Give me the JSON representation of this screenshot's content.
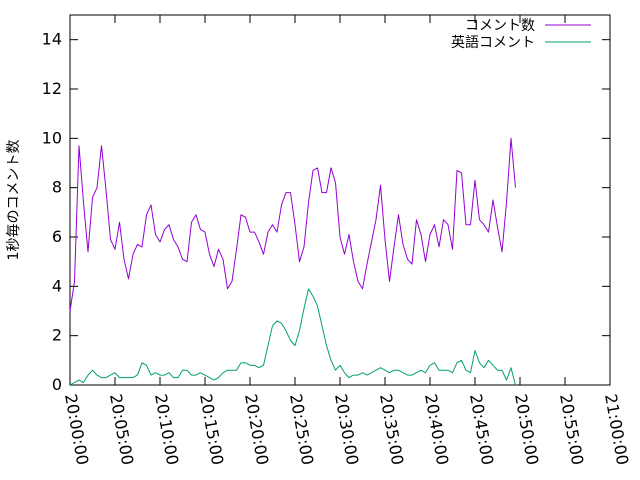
{
  "chart_data": {
    "type": "line",
    "ylabel": "1秒毎のコメント数",
    "xlabel": "",
    "ylim": [
      0,
      15
    ],
    "xlim": [
      "20:00:00",
      "21:00:00"
    ],
    "y_ticks": [
      "0",
      "2",
      "4",
      "6",
      "8",
      "10",
      "12",
      "14"
    ],
    "x_ticks": [
      "20:00:00",
      "20:05:00",
      "20:10:00",
      "20:15:00",
      "20:20:00",
      "20:25:00",
      "20:30:00",
      "20:35:00",
      "20:40:00",
      "20:45:00",
      "20:50:00",
      "20:55:00",
      "21:00:00"
    ],
    "legend_position": "top-right",
    "grid": false,
    "series": [
      {
        "name": "コメント数",
        "color": "#9400d3",
        "points": [
          [
            "20:00:00",
            3.0
          ],
          [
            "20:00:30",
            4.2
          ],
          [
            "20:01:00",
            9.7
          ],
          [
            "20:01:30",
            7.4
          ],
          [
            "20:02:00",
            5.4
          ],
          [
            "20:02:30",
            7.6
          ],
          [
            "20:03:00",
            8.0
          ],
          [
            "20:03:30",
            9.7
          ],
          [
            "20:04:00",
            7.9
          ],
          [
            "20:04:30",
            5.9
          ],
          [
            "20:05:00",
            5.5
          ],
          [
            "20:05:30",
            6.6
          ],
          [
            "20:06:00",
            5.1
          ],
          [
            "20:06:30",
            4.3
          ],
          [
            "20:07:00",
            5.3
          ],
          [
            "20:07:30",
            5.7
          ],
          [
            "20:08:00",
            5.6
          ],
          [
            "20:08:30",
            6.9
          ],
          [
            "20:09:00",
            7.3
          ],
          [
            "20:09:30",
            6.1
          ],
          [
            "20:10:00",
            5.8
          ],
          [
            "20:10:30",
            6.3
          ],
          [
            "20:11:00",
            6.5
          ],
          [
            "20:11:30",
            5.9
          ],
          [
            "20:12:00",
            5.6
          ],
          [
            "20:12:30",
            5.1
          ],
          [
            "20:13:00",
            5.0
          ],
          [
            "20:13:30",
            6.6
          ],
          [
            "20:14:00",
            6.9
          ],
          [
            "20:14:30",
            6.3
          ],
          [
            "20:15:00",
            6.2
          ],
          [
            "20:15:30",
            5.3
          ],
          [
            "20:16:00",
            4.8
          ],
          [
            "20:16:30",
            5.5
          ],
          [
            "20:17:00",
            5.1
          ],
          [
            "20:17:30",
            3.9
          ],
          [
            "20:18:00",
            4.2
          ],
          [
            "20:18:30",
            5.5
          ],
          [
            "20:19:00",
            6.9
          ],
          [
            "20:19:30",
            6.8
          ],
          [
            "20:20:00",
            6.2
          ],
          [
            "20:20:30",
            6.2
          ],
          [
            "20:21:00",
            5.8
          ],
          [
            "20:21:30",
            5.3
          ],
          [
            "20:22:00",
            6.2
          ],
          [
            "20:22:30",
            6.5
          ],
          [
            "20:23:00",
            6.2
          ],
          [
            "20:23:30",
            7.3
          ],
          [
            "20:24:00",
            7.8
          ],
          [
            "20:24:30",
            7.8
          ],
          [
            "20:25:00",
            6.5
          ],
          [
            "20:25:30",
            5.0
          ],
          [
            "20:26:00",
            5.6
          ],
          [
            "20:26:30",
            7.4
          ],
          [
            "20:27:00",
            8.7
          ],
          [
            "20:27:30",
            8.8
          ],
          [
            "20:28:00",
            7.8
          ],
          [
            "20:28:30",
            7.8
          ],
          [
            "20:29:00",
            8.8
          ],
          [
            "20:29:30",
            8.2
          ],
          [
            "20:30:00",
            6.0
          ],
          [
            "20:30:30",
            5.3
          ],
          [
            "20:31:00",
            6.1
          ],
          [
            "20:31:30",
            5.0
          ],
          [
            "20:32:00",
            4.2
          ],
          [
            "20:32:30",
            3.9
          ],
          [
            "20:33:00",
            4.9
          ],
          [
            "20:33:30",
            5.8
          ],
          [
            "20:34:00",
            6.7
          ],
          [
            "20:34:30",
            8.1
          ],
          [
            "20:35:00",
            5.9
          ],
          [
            "20:35:30",
            4.2
          ],
          [
            "20:36:00",
            5.6
          ],
          [
            "20:36:30",
            6.9
          ],
          [
            "20:37:00",
            5.7
          ],
          [
            "20:37:30",
            5.1
          ],
          [
            "20:38:00",
            4.9
          ],
          [
            "20:38:30",
            6.7
          ],
          [
            "20:39:00",
            6.1
          ],
          [
            "20:39:30",
            5.0
          ],
          [
            "20:40:00",
            6.1
          ],
          [
            "20:40:30",
            6.5
          ],
          [
            "20:41:00",
            5.6
          ],
          [
            "20:41:30",
            6.7
          ],
          [
            "20:42:00",
            6.5
          ],
          [
            "20:42:30",
            5.5
          ],
          [
            "20:43:00",
            8.7
          ],
          [
            "20:43:30",
            8.6
          ],
          [
            "20:44:00",
            6.5
          ],
          [
            "20:44:30",
            6.5
          ],
          [
            "20:45:00",
            8.3
          ],
          [
            "20:45:30",
            6.7
          ],
          [
            "20:46:00",
            6.5
          ],
          [
            "20:46:30",
            6.2
          ],
          [
            "20:47:00",
            7.5
          ],
          [
            "20:47:30",
            6.4
          ],
          [
            "20:48:00",
            5.4
          ],
          [
            "20:48:30",
            7.4
          ],
          [
            "20:49:00",
            10.0
          ],
          [
            "20:49:30",
            8.0
          ]
        ]
      },
      {
        "name": "英語コメント",
        "color": "#009e73",
        "points": [
          [
            "20:00:00",
            0.0
          ],
          [
            "20:00:30",
            0.1
          ],
          [
            "20:01:00",
            0.2
          ],
          [
            "20:01:30",
            0.1
          ],
          [
            "20:02:00",
            0.4
          ],
          [
            "20:02:30",
            0.6
          ],
          [
            "20:03:00",
            0.4
          ],
          [
            "20:03:30",
            0.3
          ],
          [
            "20:04:00",
            0.3
          ],
          [
            "20:04:30",
            0.4
          ],
          [
            "20:05:00",
            0.5
          ],
          [
            "20:05:30",
            0.3
          ],
          [
            "20:06:00",
            0.3
          ],
          [
            "20:06:30",
            0.3
          ],
          [
            "20:07:00",
            0.3
          ],
          [
            "20:07:30",
            0.4
          ],
          [
            "20:08:00",
            0.9
          ],
          [
            "20:08:30",
            0.8
          ],
          [
            "20:09:00",
            0.4
          ],
          [
            "20:09:30",
            0.5
          ],
          [
            "20:10:00",
            0.4
          ],
          [
            "20:10:30",
            0.4
          ],
          [
            "20:11:00",
            0.5
          ],
          [
            "20:11:30",
            0.3
          ],
          [
            "20:12:00",
            0.3
          ],
          [
            "20:12:30",
            0.6
          ],
          [
            "20:13:00",
            0.6
          ],
          [
            "20:13:30",
            0.4
          ],
          [
            "20:14:00",
            0.4
          ],
          [
            "20:14:30",
            0.5
          ],
          [
            "20:15:00",
            0.4
          ],
          [
            "20:15:30",
            0.3
          ],
          [
            "20:16:00",
            0.2
          ],
          [
            "20:16:30",
            0.3
          ],
          [
            "20:17:00",
            0.5
          ],
          [
            "20:17:30",
            0.6
          ],
          [
            "20:18:00",
            0.6
          ],
          [
            "20:18:30",
            0.6
          ],
          [
            "20:19:00",
            0.9
          ],
          [
            "20:19:30",
            0.9
          ],
          [
            "20:20:00",
            0.8
          ],
          [
            "20:20:30",
            0.8
          ],
          [
            "20:21:00",
            0.7
          ],
          [
            "20:21:30",
            0.8
          ],
          [
            "20:22:00",
            1.6
          ],
          [
            "20:22:30",
            2.4
          ],
          [
            "20:23:00",
            2.6
          ],
          [
            "20:23:30",
            2.5
          ],
          [
            "20:24:00",
            2.2
          ],
          [
            "20:24:30",
            1.8
          ],
          [
            "20:25:00",
            1.6
          ],
          [
            "20:25:30",
            2.2
          ],
          [
            "20:26:00",
            3.1
          ],
          [
            "20:26:30",
            3.9
          ],
          [
            "20:27:00",
            3.6
          ],
          [
            "20:27:30",
            3.2
          ],
          [
            "20:28:00",
            2.4
          ],
          [
            "20:28:30",
            1.6
          ],
          [
            "20:29:00",
            1.0
          ],
          [
            "20:29:30",
            0.6
          ],
          [
            "20:30:00",
            0.8
          ],
          [
            "20:30:30",
            0.5
          ],
          [
            "20:31:00",
            0.3
          ],
          [
            "20:31:30",
            0.4
          ],
          [
            "20:32:00",
            0.4
          ],
          [
            "20:32:30",
            0.5
          ],
          [
            "20:33:00",
            0.4
          ],
          [
            "20:33:30",
            0.5
          ],
          [
            "20:34:00",
            0.6
          ],
          [
            "20:34:30",
            0.7
          ],
          [
            "20:35:00",
            0.6
          ],
          [
            "20:35:30",
            0.5
          ],
          [
            "20:36:00",
            0.6
          ],
          [
            "20:36:30",
            0.6
          ],
          [
            "20:37:00",
            0.5
          ],
          [
            "20:37:30",
            0.4
          ],
          [
            "20:38:00",
            0.4
          ],
          [
            "20:38:30",
            0.5
          ],
          [
            "20:39:00",
            0.6
          ],
          [
            "20:39:30",
            0.5
          ],
          [
            "20:40:00",
            0.8
          ],
          [
            "20:40:30",
            0.9
          ],
          [
            "20:41:00",
            0.6
          ],
          [
            "20:41:30",
            0.6
          ],
          [
            "20:42:00",
            0.6
          ],
          [
            "20:42:30",
            0.5
          ],
          [
            "20:43:00",
            0.9
          ],
          [
            "20:43:30",
            1.0
          ],
          [
            "20:44:00",
            0.6
          ],
          [
            "20:44:30",
            0.5
          ],
          [
            "20:45:00",
            1.4
          ],
          [
            "20:45:30",
            0.9
          ],
          [
            "20:46:00",
            0.7
          ],
          [
            "20:46:30",
            1.0
          ],
          [
            "20:47:00",
            0.8
          ],
          [
            "20:47:30",
            0.6
          ],
          [
            "20:48:00",
            0.6
          ],
          [
            "20:48:30",
            0.2
          ],
          [
            "20:49:00",
            0.7
          ],
          [
            "20:49:30",
            0.0
          ]
        ]
      }
    ]
  }
}
